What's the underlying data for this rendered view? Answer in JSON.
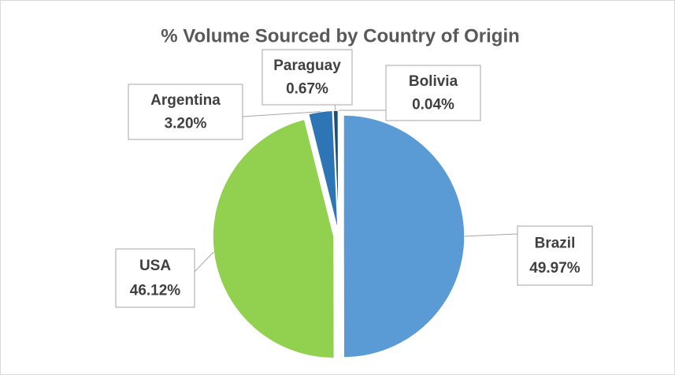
{
  "chart_data": {
    "type": "pie",
    "title": "% Volume Sourced by Country of Origin",
    "categories": [
      "Brazil",
      "USA",
      "Argentina",
      "Paraguay",
      "Bolivia"
    ],
    "values": [
      49.97,
      46.12,
      3.2,
      0.67,
      0.04
    ],
    "value_labels": [
      "49.97%",
      "46.12%",
      "3.20%",
      "0.67%",
      "0.04%"
    ],
    "colors": [
      "#5b9bd5",
      "#92d050",
      "#2e75b6",
      "#1f4e79",
      "#1a3f66"
    ]
  }
}
